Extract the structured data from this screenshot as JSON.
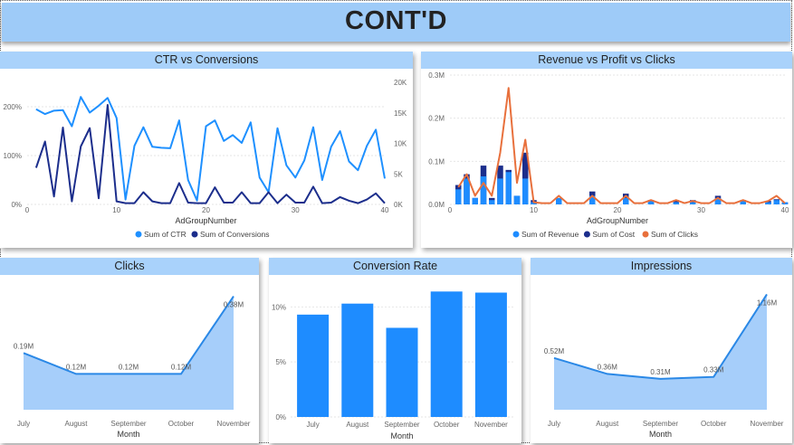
{
  "page": {
    "title": "CONT'D"
  },
  "colors": {
    "light_blue": "#1e90ff",
    "dark_blue": "#1c2e8c",
    "orange": "#e8703c",
    "bar_blue": "#1e8cff",
    "area_fill": "#a6cefa",
    "line_blue": "#2a88e6"
  },
  "chart_data": [
    {
      "type": "line",
      "title": "CTR vs Conversions",
      "xlabel": "AdGroupNumber",
      "x_ticks": [
        "0",
        "10",
        "20",
        "30",
        "40"
      ],
      "y_left_ticks": [
        "0%",
        "100%",
        "200%"
      ],
      "y_right_ticks": [
        "0K",
        "5K",
        "10K",
        "15K",
        "20K"
      ],
      "xlim": [
        0,
        40
      ],
      "ylim_left": [
        0,
        2.5
      ],
      "ylim_right": [
        0,
        20000
      ],
      "legend": "bottom",
      "series": [
        {
          "name": "Sum of CTR",
          "axis": "left",
          "color": "#1e90ff",
          "x": [
            1,
            2,
            3,
            4,
            5,
            6,
            7,
            8,
            9,
            10,
            11,
            12,
            13,
            14,
            15,
            16,
            17,
            18,
            19,
            20,
            21,
            22,
            23,
            24,
            25,
            26,
            27,
            28,
            29,
            30,
            31,
            32,
            33,
            34,
            35,
            36,
            37,
            38,
            39,
            40
          ],
          "values": [
            1.95,
            1.85,
            1.92,
            1.93,
            1.6,
            2.2,
            1.88,
            2.02,
            2.18,
            1.77,
            0.1,
            1.2,
            1.58,
            1.18,
            1.16,
            1.15,
            1.72,
            0.5,
            0.08,
            1.6,
            1.72,
            1.3,
            1.42,
            1.26,
            1.68,
            0.55,
            0.25,
            1.56,
            0.8,
            0.55,
            0.9,
            1.58,
            0.5,
            1.18,
            1.5,
            0.88,
            0.7,
            1.2,
            1.53,
            0.53
          ]
        },
        {
          "name": "Sum of Conversions",
          "axis": "right",
          "color": "#1c2e8c",
          "x": [
            1,
            2,
            3,
            4,
            5,
            6,
            7,
            8,
            9,
            10,
            11,
            12,
            13,
            14,
            15,
            16,
            17,
            18,
            19,
            20,
            21,
            22,
            23,
            24,
            25,
            26,
            27,
            28,
            29,
            30,
            31,
            32,
            33,
            34,
            35,
            36,
            37,
            38,
            39,
            40
          ],
          "values": [
            6000,
            10300,
            1300,
            12600,
            500,
            9500,
            12500,
            1000,
            16300,
            500,
            200,
            200,
            2000,
            500,
            200,
            200,
            3500,
            300,
            200,
            200,
            2800,
            300,
            300,
            2000,
            200,
            200,
            2000,
            200,
            1600,
            300,
            300,
            2900,
            200,
            300,
            1200,
            600,
            200,
            800,
            1800,
            200
          ]
        }
      ]
    },
    {
      "type": "bar",
      "title": "Revenue vs Profit vs Clicks",
      "xlabel": "AdGroupNumber",
      "x_ticks": [
        "0",
        "10",
        "20",
        "30",
        "40"
      ],
      "y_ticks": [
        "0.0M",
        "0.1M",
        "0.2M",
        "0.3M"
      ],
      "xlim": [
        0,
        40
      ],
      "ylim": [
        0,
        0.3
      ],
      "legend": "bottom",
      "x": [
        1,
        2,
        3,
        4,
        5,
        6,
        7,
        8,
        9,
        10,
        11,
        12,
        13,
        14,
        15,
        16,
        17,
        18,
        19,
        20,
        21,
        22,
        23,
        24,
        25,
        26,
        27,
        28,
        29,
        30,
        31,
        32,
        33,
        34,
        35,
        36,
        37,
        38,
        39,
        40
      ],
      "series": [
        {
          "name": "Sum of Revenue",
          "type": "bar",
          "color": "#1e8cff",
          "values": [
            0.035,
            0.06,
            0.015,
            0.065,
            0.01,
            0.06,
            0.075,
            0.02,
            0.06,
            0.005,
            0,
            0,
            0.015,
            0,
            0,
            0,
            0.02,
            0,
            0,
            0,
            0.015,
            0,
            0,
            0.008,
            0,
            0,
            0.005,
            0,
            0.005,
            0,
            0,
            0.015,
            0,
            0,
            0.008,
            0,
            0,
            0.005,
            0.01,
            0.005
          ]
        },
        {
          "name": "Sum of Cost",
          "type": "bar",
          "color": "#1c2e8c",
          "values": [
            0.045,
            0.07,
            0.015,
            0.09,
            0.015,
            0.09,
            0.08,
            0.02,
            0.12,
            0.01,
            0,
            0,
            0.012,
            0,
            0,
            0,
            0.03,
            0,
            0,
            0,
            0.025,
            0,
            0,
            0.01,
            0,
            0,
            0.01,
            0,
            0.01,
            0,
            0,
            0.02,
            0,
            0,
            0.01,
            0,
            0,
            0.008,
            0.012,
            0.005
          ]
        },
        {
          "name": "Sum of Clicks",
          "type": "line",
          "color": "#e8703c",
          "values": [
            0.04,
            0.07,
            0.02,
            0.05,
            0.02,
            0.12,
            0.27,
            0.05,
            0.15,
            0.005,
            0.003,
            0.003,
            0.02,
            0.003,
            0.003,
            0.003,
            0.02,
            0.003,
            0.003,
            0.003,
            0.02,
            0.003,
            0.003,
            0.01,
            0.003,
            0.003,
            0.01,
            0.003,
            0.008,
            0.003,
            0.003,
            0.015,
            0.003,
            0.003,
            0.01,
            0.003,
            0.003,
            0.008,
            0.02,
            0.003
          ]
        }
      ]
    },
    {
      "type": "area",
      "title": "Clicks",
      "xlabel": "Month",
      "categories": [
        "July",
        "August",
        "September",
        "October",
        "November"
      ],
      "data_labels": [
        "0.19M",
        "0.12M",
        "0.12M",
        "0.12M",
        "0.38M"
      ],
      "values": [
        0.19,
        0.12,
        0.12,
        0.12,
        0.38
      ],
      "ylim": [
        0,
        0.4
      ]
    },
    {
      "type": "bar",
      "title": "Conversion Rate",
      "xlabel": "Month",
      "categories": [
        "July",
        "August",
        "September",
        "October",
        "November"
      ],
      "values": [
        9.3,
        10.3,
        8.1,
        11.4,
        11.3
      ],
      "y_ticks": [
        "0%",
        "5%",
        "10%"
      ],
      "ylim": [
        0,
        12
      ]
    },
    {
      "type": "area",
      "title": "Impressions",
      "xlabel": "Month",
      "categories": [
        "July",
        "August",
        "September",
        "October",
        "November"
      ],
      "data_labels": [
        "0.52M",
        "0.36M",
        "0.31M",
        "0.33M",
        "1.16M"
      ],
      "values": [
        0.52,
        0.36,
        0.31,
        0.33,
        1.16
      ],
      "ylim": [
        0,
        1.2
      ]
    }
  ]
}
